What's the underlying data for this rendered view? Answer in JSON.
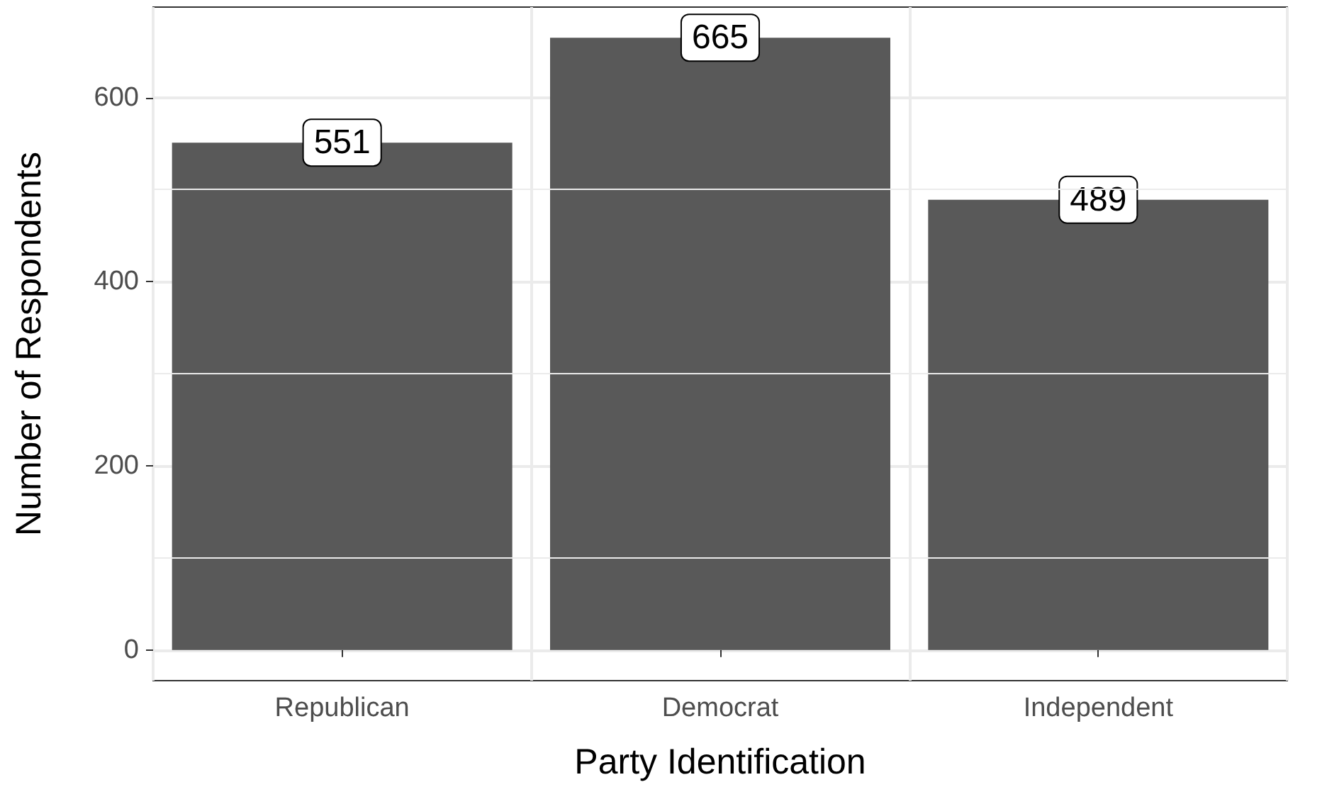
{
  "chart_data": {
    "type": "bar",
    "xlabel": "Party Identification",
    "ylabel": "Number of Respondents",
    "categories": [
      "Republican",
      "Democrat",
      "Independent"
    ],
    "values": [
      551,
      665,
      489
    ],
    "color": "#595959",
    "ylim": [
      -33.25,
      698.25
    ],
    "yticks": [
      0,
      200,
      400,
      600
    ],
    "grid": true,
    "data_labels": true
  }
}
